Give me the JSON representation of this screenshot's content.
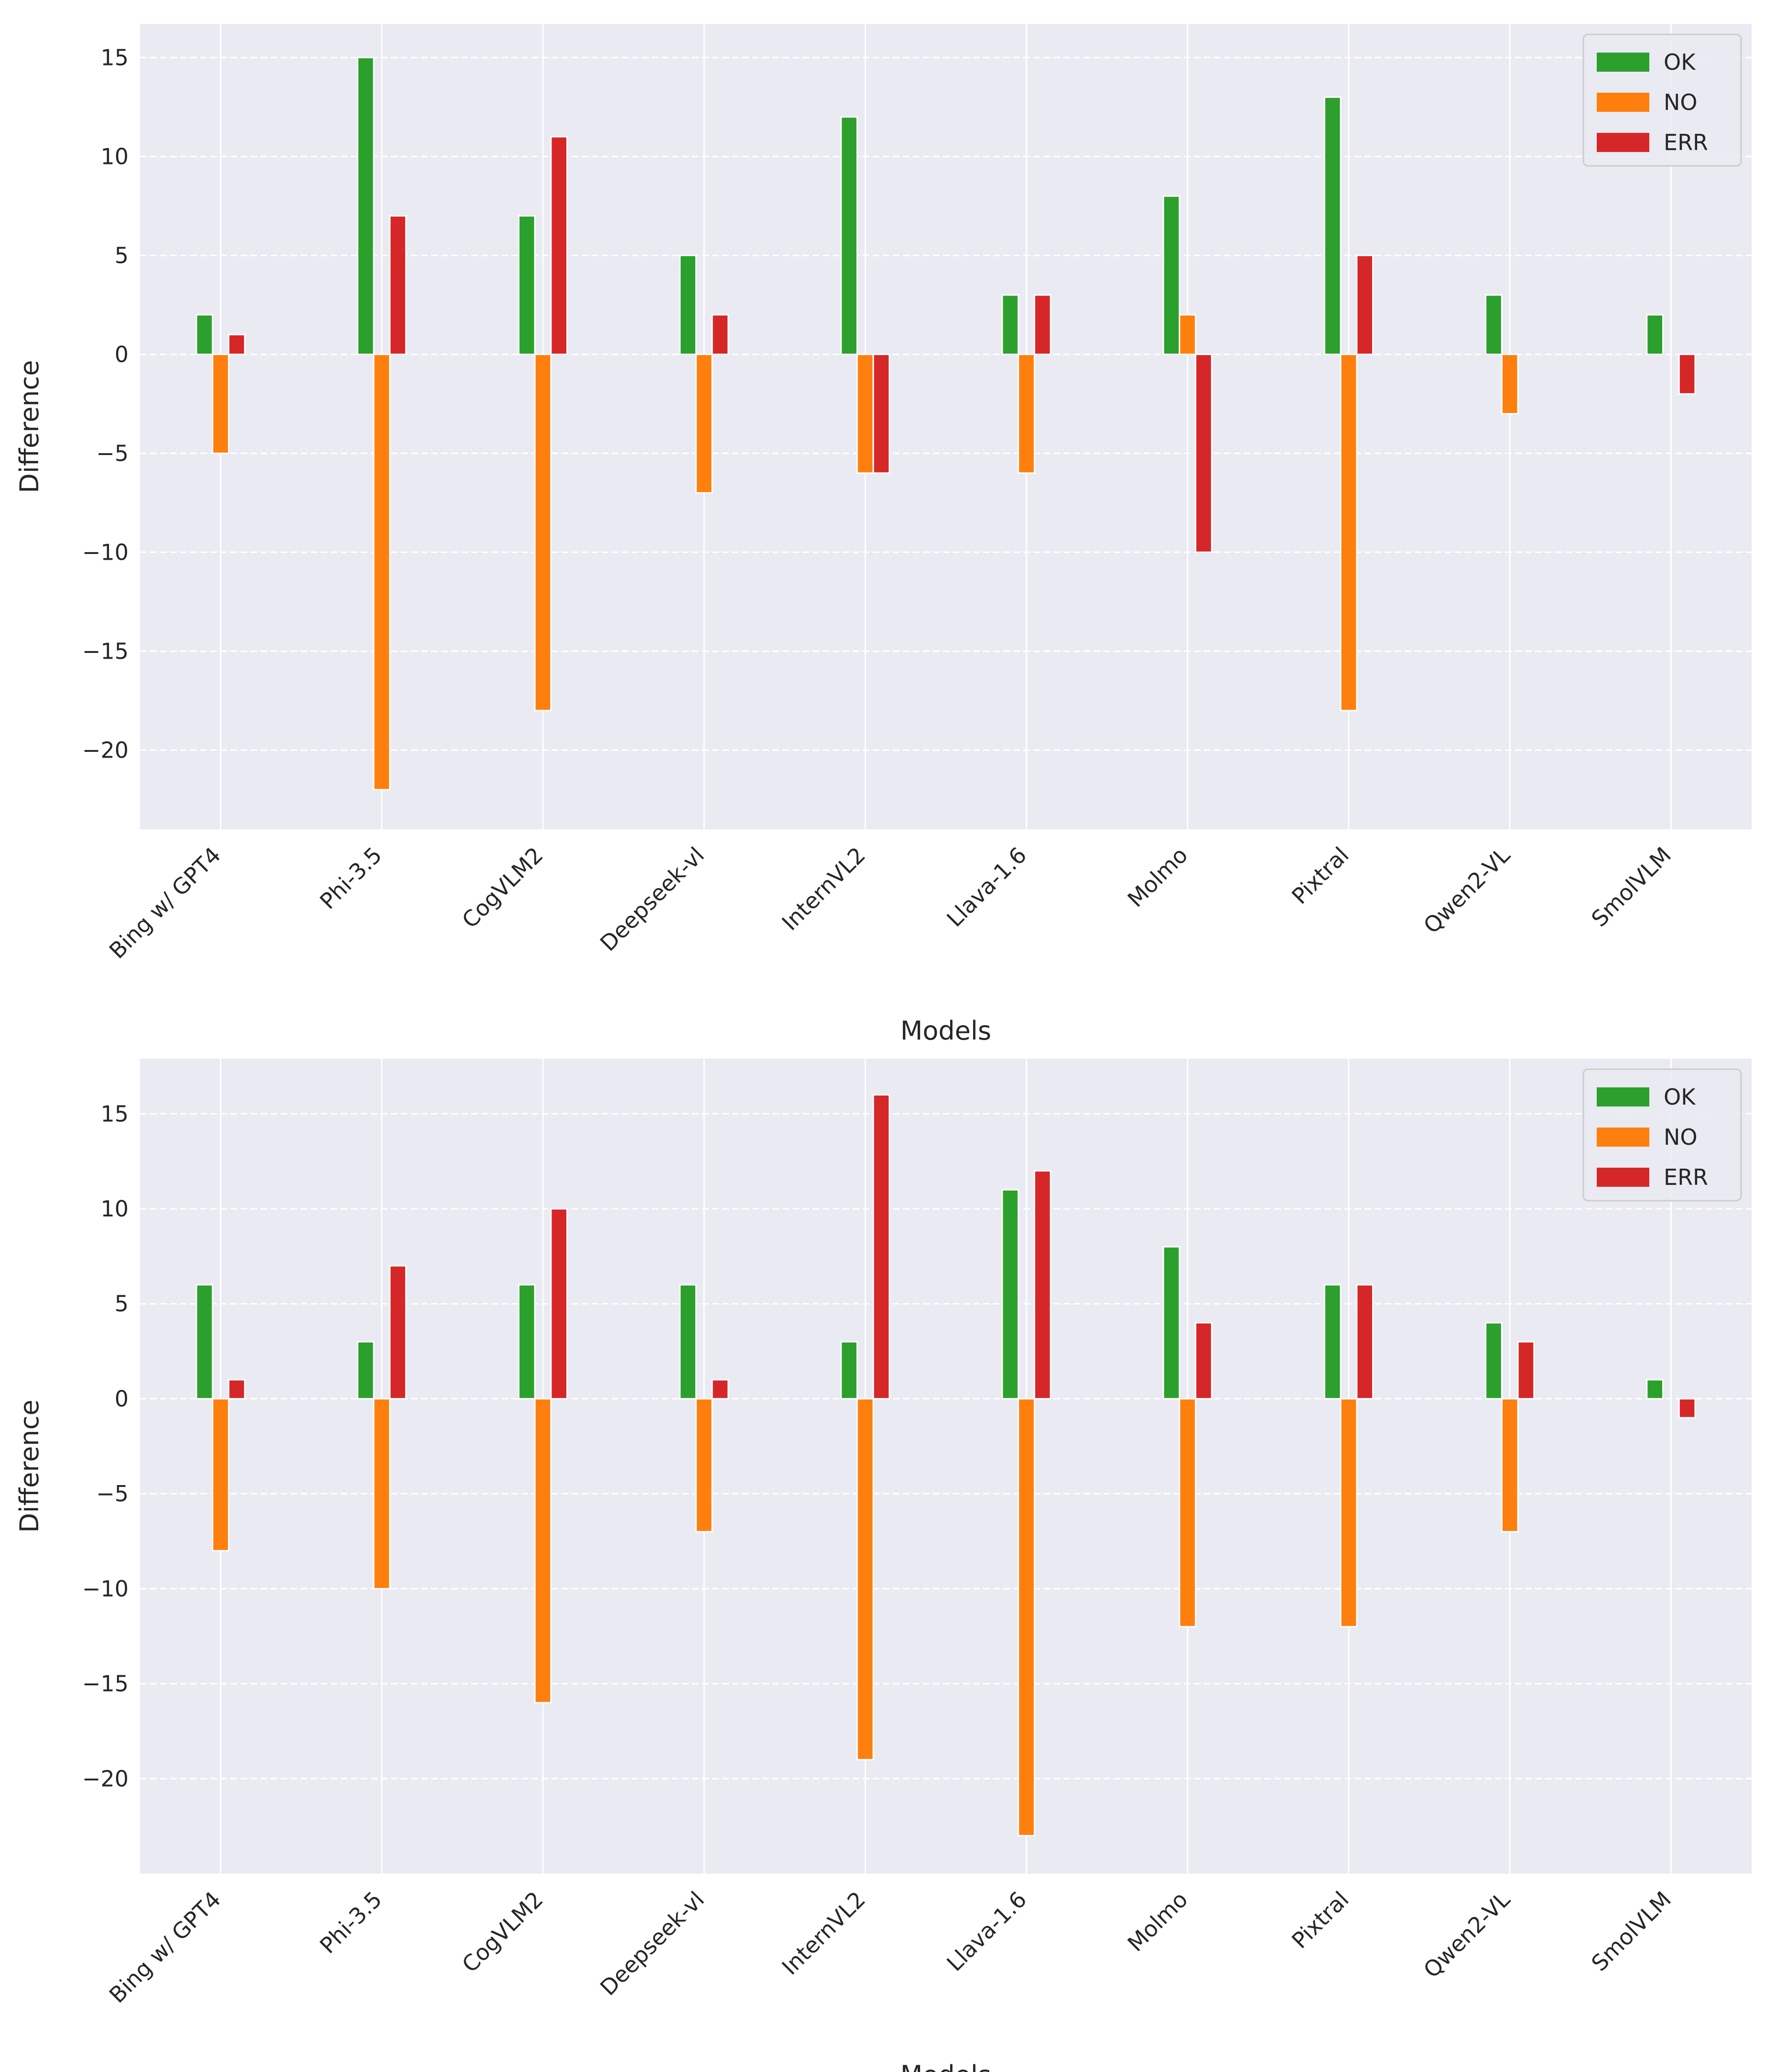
{
  "colors": {
    "OK": "#2ca02c",
    "NO": "#ff7f0e",
    "ERR": "#d62728",
    "plot_bg": "#eaeaf2",
    "grid": "#ffffff"
  },
  "chart_data": [
    {
      "type": "bar",
      "categories": [
        "Bing w/ GPT4",
        "Phi-3.5",
        "CogVLM2",
        "Deepseek-vl",
        "InternVL2",
        "Llava-1.6",
        "Molmo",
        "Pixtral",
        "Qwen2-VL",
        "SmolVLM"
      ],
      "series": [
        {
          "name": "OK",
          "values": [
            2,
            15,
            7,
            5,
            12,
            3,
            8,
            13,
            3,
            2
          ]
        },
        {
          "name": "NO",
          "values": [
            -5,
            -22,
            -18,
            -7,
            -6,
            -6,
            2,
            -18,
            -3,
            0
          ]
        },
        {
          "name": "ERR",
          "values": [
            1,
            7,
            11,
            2,
            -6,
            3,
            -10,
            5,
            0,
            -2
          ]
        }
      ],
      "xlabel": "Models",
      "ylabel": "Difference",
      "ylim": [
        -24,
        16.7
      ],
      "yticks": [
        15,
        10,
        5,
        0,
        -5,
        -10,
        -15,
        -20
      ],
      "ytick_labels": [
        "15",
        "10",
        "5",
        "0",
        "−5",
        "−10",
        "−15",
        "−20"
      ],
      "legend": [
        "OK",
        "NO",
        "ERR"
      ],
      "legend_position": "top-right",
      "grid": true
    },
    {
      "type": "bar",
      "categories": [
        "Bing w/ GPT4",
        "Phi-3.5",
        "CogVLM2",
        "Deepseek-vl",
        "InternVL2",
        "Llava-1.6",
        "Molmo",
        "Pixtral",
        "Qwen2-VL",
        "SmolVLM"
      ],
      "series": [
        {
          "name": "OK",
          "values": [
            6,
            3,
            6,
            6,
            3,
            11,
            8,
            6,
            4,
            1
          ]
        },
        {
          "name": "NO",
          "values": [
            -8,
            -10,
            -16,
            -7,
            -19,
            -23,
            -12,
            -12,
            -7,
            0
          ]
        },
        {
          "name": "ERR",
          "values": [
            1,
            7,
            10,
            1,
            16,
            12,
            4,
            6,
            3,
            -1
          ]
        }
      ],
      "xlabel": "Models",
      "ylabel": "Difference",
      "ylim": [
        -25,
        17.9
      ],
      "yticks": [
        15,
        10,
        5,
        0,
        -5,
        -10,
        -15,
        -20
      ],
      "ytick_labels": [
        "15",
        "10",
        "5",
        "0",
        "−5",
        "−10",
        "−15",
        "−20"
      ],
      "legend": [
        "OK",
        "NO",
        "ERR"
      ],
      "legend_position": "top-right",
      "grid": true
    }
  ]
}
